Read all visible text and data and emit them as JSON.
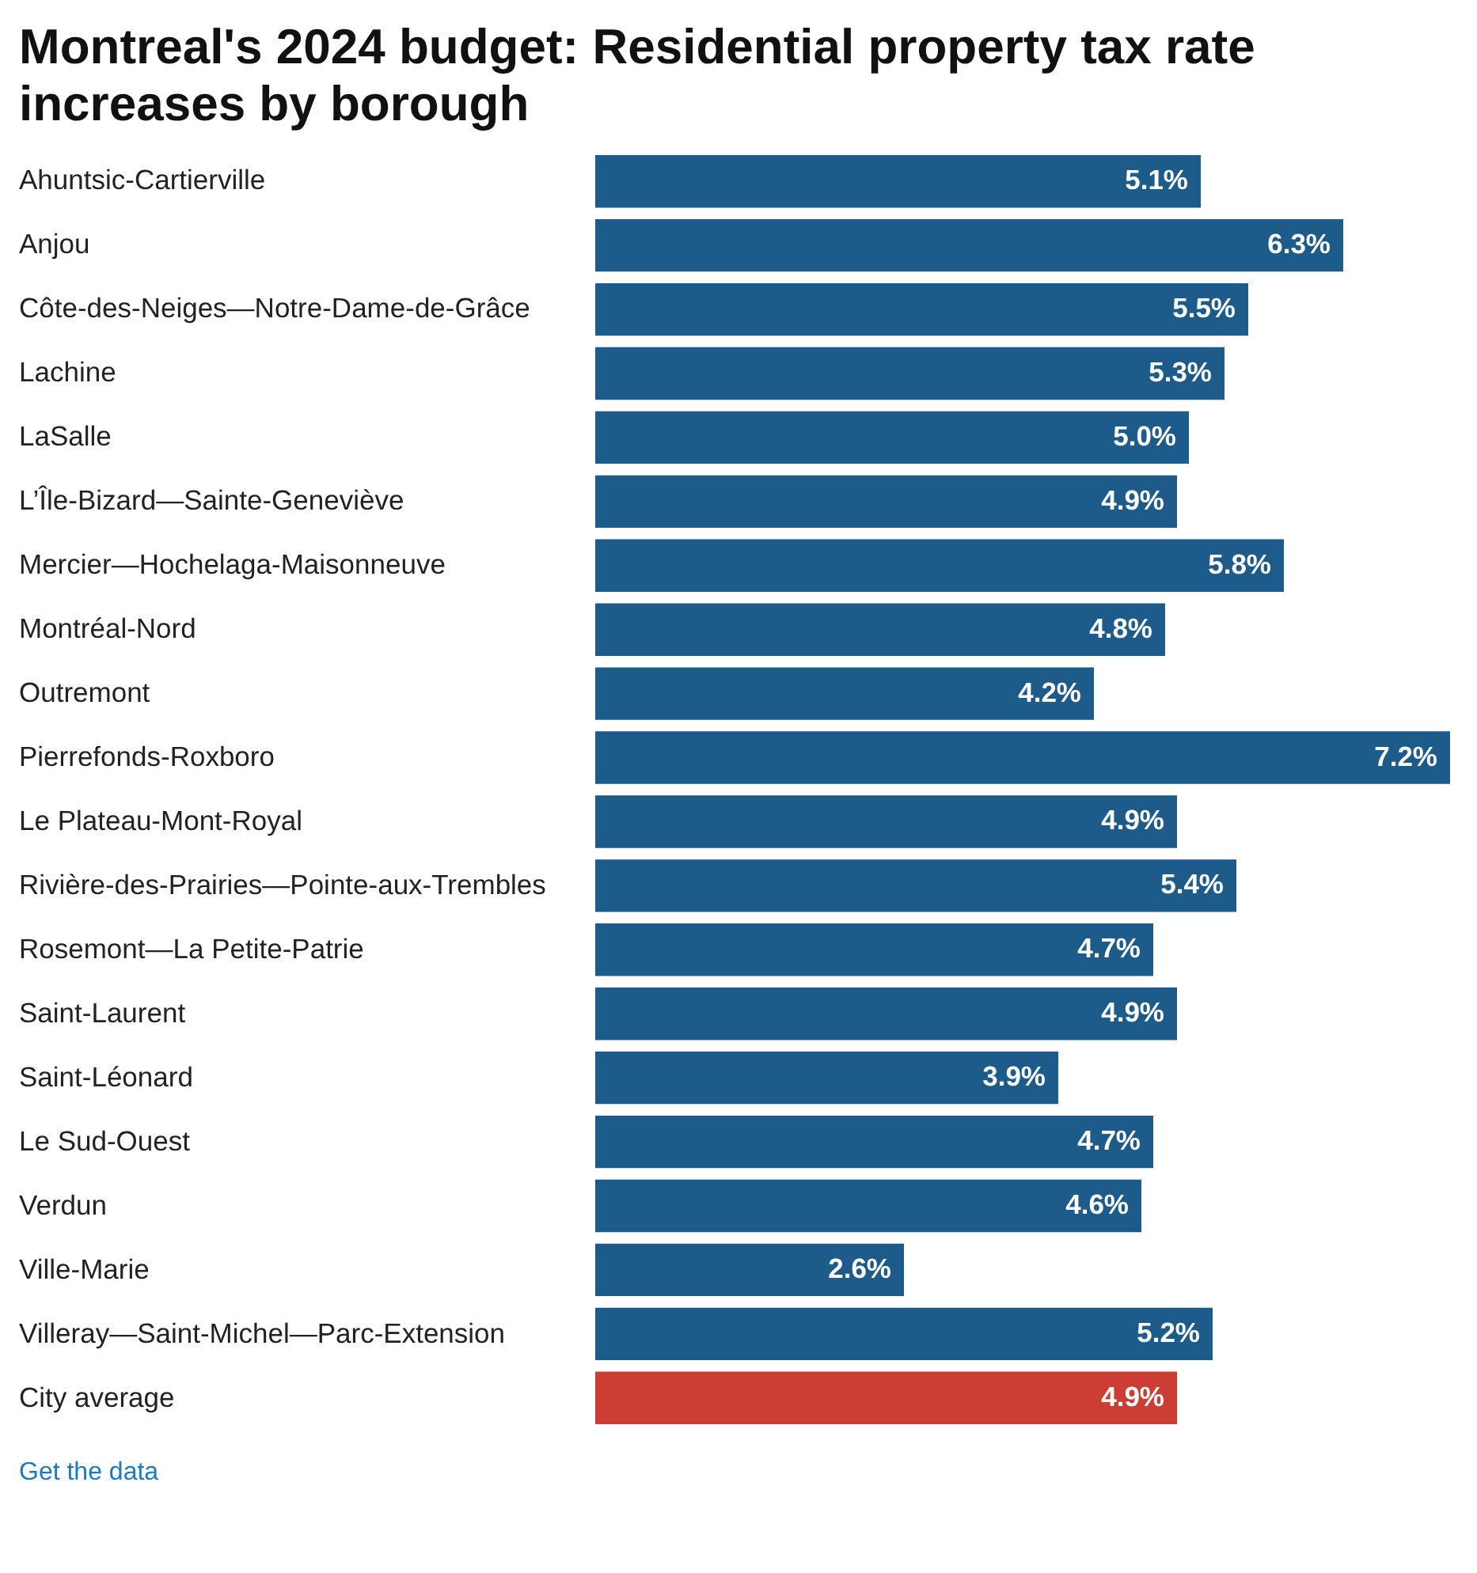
{
  "chart_data": {
    "type": "bar",
    "orientation": "horizontal",
    "title": "Montreal's 2024 budget: Residential property tax rate increases by borough",
    "categories": [
      "Ahuntsic-Cartierville",
      "Anjou",
      "Côte-des-Neiges—Notre-Dame-de-Grâce",
      "Lachine",
      "LaSalle",
      "L’Île-Bizard—Sainte-Geneviève",
      "Mercier—Hochelaga-Maisonneuve",
      "Montréal-Nord",
      "Outremont",
      "Pierrefonds-Roxboro",
      "Le Plateau-Mont-Royal",
      "Rivière-des-Prairies—Pointe-aux-Trembles",
      "Rosemont—La Petite-Patrie",
      "Saint-Laurent",
      "Saint-Léonard",
      "Le Sud-Ouest",
      "Verdun",
      "Ville-Marie",
      "Villeray—Saint-Michel—Parc-Extension",
      "City average"
    ],
    "values": [
      5.1,
      6.3,
      5.5,
      5.3,
      5.0,
      4.9,
      5.8,
      4.8,
      4.2,
      7.2,
      4.9,
      5.4,
      4.7,
      4.9,
      3.9,
      4.7,
      4.6,
      2.6,
      5.2,
      4.9
    ],
    "value_labels": [
      "5.1%",
      "6.3%",
      "5.5%",
      "5.3%",
      "5.0%",
      "4.9%",
      "5.8%",
      "4.8%",
      "4.2%",
      "7.2%",
      "4.9%",
      "5.4%",
      "4.7%",
      "4.9%",
      "3.9%",
      "4.7%",
      "4.6%",
      "2.6%",
      "5.2%",
      "4.9%"
    ],
    "colors": [
      "#1d5b8a",
      "#1d5b8a",
      "#1d5b8a",
      "#1d5b8a",
      "#1d5b8a",
      "#1d5b8a",
      "#1d5b8a",
      "#1d5b8a",
      "#1d5b8a",
      "#1d5b8a",
      "#1d5b8a",
      "#1d5b8a",
      "#1d5b8a",
      "#1d5b8a",
      "#1d5b8a",
      "#1d5b8a",
      "#1d5b8a",
      "#1d5b8a",
      "#1d5b8a",
      "#cc3d33"
    ],
    "annotations": [
      "Get the data"
    ]
  }
}
